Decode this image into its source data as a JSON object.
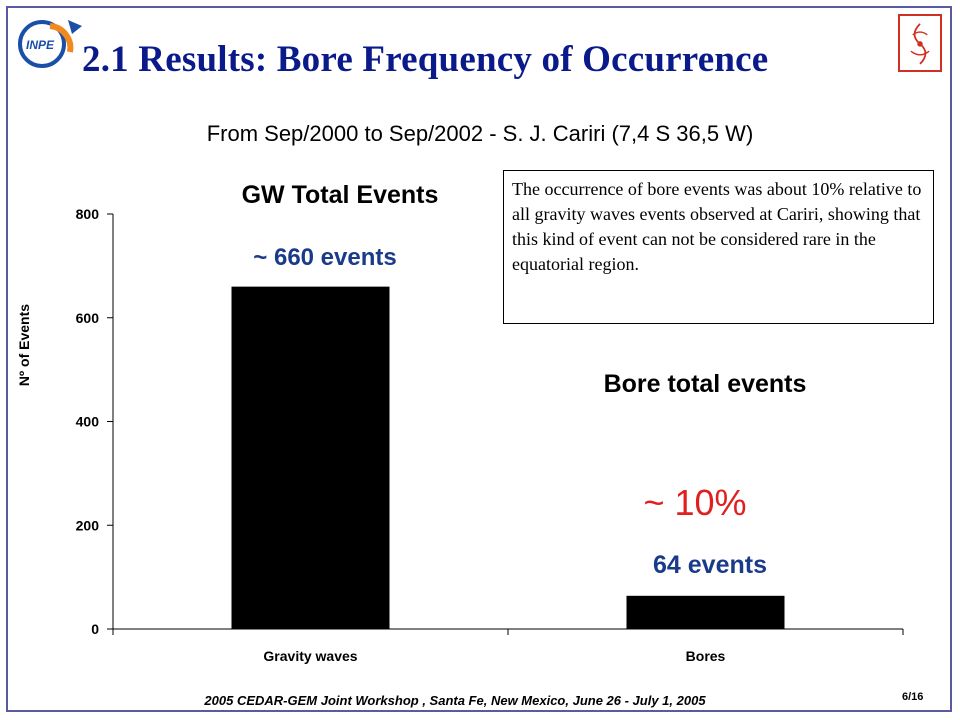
{
  "slide": {
    "title": "2.1 Results: Bore  Frequency of  Occurrence",
    "subtitle": "From Sep/2000 to Sep/2002 - S. J. Cariri (7,4 S  36,5 W)",
    "note": "The occurrence of bore events was about 10% relative to all gravity waves events observed at Cariri, showing that this kind of event can not be considered rare in the equatorial region.",
    "footer": "2005 CEDAR-GEM Joint Workshop , Santa Fe, New Mexico, June 26 - July 1, 2005",
    "page": "6/16",
    "logo_left_text": "INPE"
  },
  "annotations": {
    "gw_title": "GW Total Events",
    "gw_events": "~ 660 events",
    "bore_title": "Bore total events",
    "bore_pct": "~ 10%",
    "bore_events": "64 events"
  },
  "chart_data": {
    "type": "bar",
    "categories": [
      "Gravity waves",
      "Bores"
    ],
    "values": [
      660,
      64
    ],
    "ylabel": "Nº of Events",
    "xlabel": "",
    "ylim": [
      0,
      800
    ],
    "yticks": [
      0,
      200,
      400,
      600,
      800
    ],
    "grid": false,
    "bar_color": "#000000"
  },
  "colors": {
    "title": "#0a1a8a",
    "frame": "#5a5aa0",
    "accent_red": "#e02020",
    "accent_blue": "#1a3a8a"
  }
}
